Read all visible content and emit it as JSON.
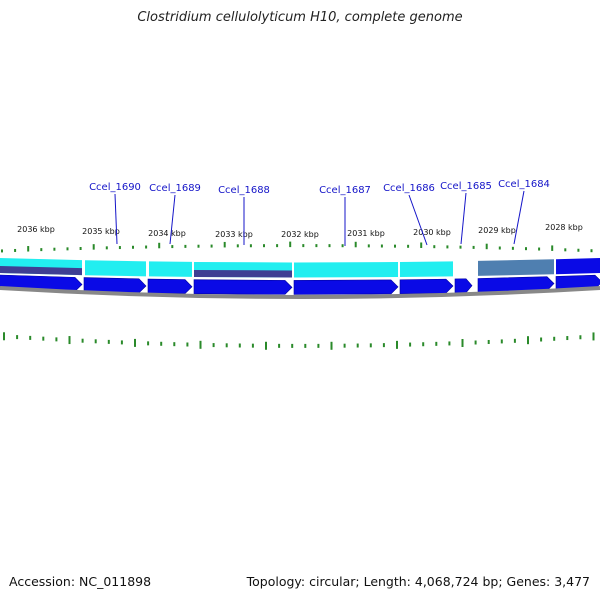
{
  "title": "Clostridium cellulolyticum H10, complete genome",
  "footer": {
    "accession": "Accession: NC_011898",
    "summary": "Topology: circular; Length: 4,068,724 bp; Genes: 3,477"
  },
  "colors": {
    "cds_forward": "#0a0ae6",
    "cds_feature_light": "#22eef0",
    "cds_feature_dark": "#3f3f93",
    "cds_feature_steel": "#4f7fb0",
    "backbone": "#888888",
    "ticks": "#2a8a2a",
    "gene_label": "#1414c8"
  },
  "kbp_ticks": [
    {
      "kbp": 2036,
      "label": "2036 kbp"
    },
    {
      "kbp": 2035,
      "label": "2035 kbp"
    },
    {
      "kbp": 2034,
      "label": "2034 kbp"
    },
    {
      "kbp": 2033,
      "label": "2033 kbp"
    },
    {
      "kbp": 2032,
      "label": "2032 kbp"
    },
    {
      "kbp": 2031,
      "label": "2031 kbp"
    },
    {
      "kbp": 2030,
      "label": "2030 kbp"
    },
    {
      "kbp": 2029,
      "label": "2029 kbp"
    },
    {
      "kbp": 2028,
      "label": "2028 kbp"
    }
  ],
  "genes": [
    {
      "name": "Ccel_1690"
    },
    {
      "name": "Ccel_1689"
    },
    {
      "name": "Ccel_1688"
    },
    {
      "name": "Ccel_1687"
    },
    {
      "name": "Ccel_1686"
    },
    {
      "name": "Ccel_1685"
    },
    {
      "name": "Ccel_1684"
    }
  ]
}
